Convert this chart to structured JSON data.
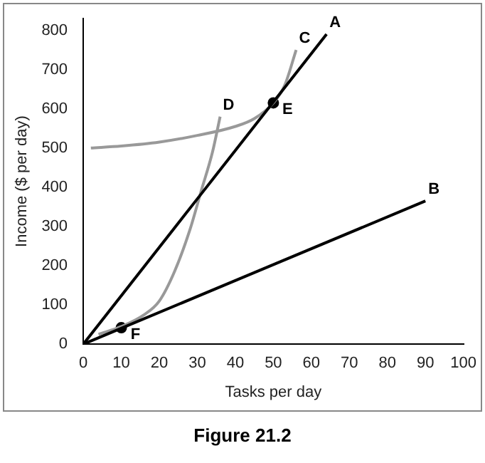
{
  "chart_data": {
    "type": "line",
    "xlabel": "Tasks per day",
    "ylabel": "Income ($ per day)",
    "xlim": [
      0,
      100
    ],
    "ylim": [
      0,
      830
    ],
    "xticks": [
      0,
      10,
      20,
      30,
      40,
      50,
      60,
      70,
      80,
      90,
      100
    ],
    "yticks": [
      0,
      100,
      200,
      300,
      400,
      500,
      600,
      700,
      800
    ],
    "grid": false,
    "legend": false,
    "series": [
      {
        "name": "A",
        "color": "#000000",
        "x": [
          0,
          64
        ],
        "values": [
          0,
          790
        ]
      },
      {
        "name": "B",
        "color": "#000000",
        "x": [
          0,
          90
        ],
        "values": [
          0,
          365
        ]
      },
      {
        "name": "C",
        "color": "#999999",
        "x": [
          2,
          10,
          20,
          30,
          40,
          45,
          50,
          53,
          56
        ],
        "values": [
          500,
          505,
          515,
          532,
          555,
          575,
          615,
          660,
          750
        ]
      },
      {
        "name": "D",
        "color": "#999999",
        "x": [
          4,
          10,
          16,
          20,
          24,
          28,
          31,
          34,
          36
        ],
        "values": [
          25,
          45,
          75,
          110,
          185,
          290,
          390,
          490,
          580
        ]
      },
      {
        "name": "E",
        "type": "scatter",
        "color": "#000000",
        "x": [
          50
        ],
        "values": [
          615
        ]
      },
      {
        "name": "F",
        "type": "scatter",
        "color": "#000000",
        "x": [
          10
        ],
        "values": [
          42
        ]
      }
    ],
    "annotations": [
      "Figure 21.2"
    ]
  }
}
